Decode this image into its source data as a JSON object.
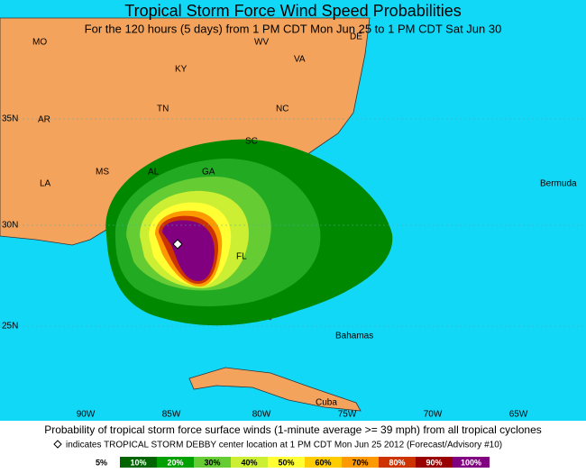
{
  "header": {
    "title": "Tropical Storm Force Wind Speed Probabilities",
    "subtitle": "For the 120 hours (5 days) from 1 PM CDT Mon Jun 25 to 1 PM CDT Sat Jun 30"
  },
  "map_labels": [
    "MO",
    "WV",
    "DE",
    "VA",
    "KY",
    "TN",
    "NC",
    "AR",
    "SC",
    "MS",
    "AL",
    "GA",
    "LA",
    "FL",
    "Bermuda",
    "Bahamas",
    "Cuba"
  ],
  "latitude_labels": [
    "35N",
    "30N",
    "25N"
  ],
  "longitude_labels": [
    "90W",
    "85W",
    "80W",
    "75W",
    "70W",
    "65W"
  ],
  "footer": {
    "caption": "Probability of tropical storm force surface winds (1-minute average >= 39 mph) from all tropical cyclones",
    "note": "indicates TROPICAL STORM DEBBY center location at 1 PM CDT Mon Jun 25 2012 (Forecast/Advisory #10)"
  },
  "legend": [
    {
      "label": "5%",
      "color": "#ffffff"
    },
    {
      "label": "10%",
      "color": "#006400"
    },
    {
      "label": "20%",
      "color": "#00a000"
    },
    {
      "label": "30%",
      "color": "#66cc33"
    },
    {
      "label": "40%",
      "color": "#ccee33"
    },
    {
      "label": "50%",
      "color": "#ffff33"
    },
    {
      "label": "60%",
      "color": "#ffcc00"
    },
    {
      "label": "70%",
      "color": "#ff9900"
    },
    {
      "label": "80%",
      "color": "#cc3300"
    },
    {
      "label": "90%",
      "color": "#990000"
    },
    {
      "label": "100%",
      "color": "#800080"
    }
  ]
}
